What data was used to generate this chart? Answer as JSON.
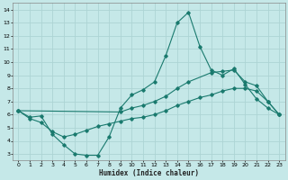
{
  "xlabel": "Humidex (Indice chaleur)",
  "bg_color": "#c5e8e8",
  "grid_color": "#add4d4",
  "line_color": "#1a7a6e",
  "xlim": [
    -0.5,
    23.5
  ],
  "ylim": [
    2.5,
    14.5
  ],
  "xticks": [
    0,
    1,
    2,
    3,
    4,
    5,
    6,
    7,
    8,
    9,
    10,
    11,
    12,
    13,
    14,
    15,
    16,
    17,
    18,
    19,
    20,
    21,
    22,
    23
  ],
  "yticks": [
    3,
    4,
    5,
    6,
    7,
    8,
    9,
    10,
    11,
    12,
    13,
    14
  ],
  "line1_x": [
    0,
    1,
    2,
    3,
    4,
    5,
    6,
    7,
    8,
    9,
    10,
    11,
    12,
    13,
    14,
    15,
    16,
    17,
    18,
    19,
    20,
    21,
    22,
    23
  ],
  "line1_y": [
    6.3,
    5.8,
    5.9,
    4.5,
    3.7,
    3.0,
    2.9,
    2.9,
    4.3,
    6.5,
    7.5,
    7.9,
    8.5,
    10.5,
    13.0,
    13.8,
    11.2,
    9.4,
    9.0,
    9.5,
    8.3,
    7.2,
    6.5,
    6.0
  ],
  "line2_x": [
    0,
    9,
    10,
    11,
    12,
    13,
    14,
    15,
    17,
    18,
    19,
    20,
    21,
    22,
    23
  ],
  "line2_y": [
    6.3,
    6.2,
    6.5,
    6.7,
    7.0,
    7.4,
    8.0,
    8.5,
    9.2,
    9.3,
    9.4,
    8.5,
    8.2,
    7.0,
    6.0
  ],
  "line3_x": [
    0,
    1,
    2,
    3,
    4,
    5,
    6,
    7,
    8,
    9,
    10,
    11,
    12,
    13,
    14,
    15,
    16,
    17,
    18,
    19,
    20,
    21,
    22,
    23
  ],
  "line3_y": [
    6.3,
    5.7,
    5.4,
    4.7,
    4.3,
    4.5,
    4.8,
    5.1,
    5.3,
    5.5,
    5.7,
    5.8,
    6.0,
    6.3,
    6.7,
    7.0,
    7.3,
    7.5,
    7.8,
    8.0,
    8.0,
    7.8,
    7.0,
    6.0
  ]
}
